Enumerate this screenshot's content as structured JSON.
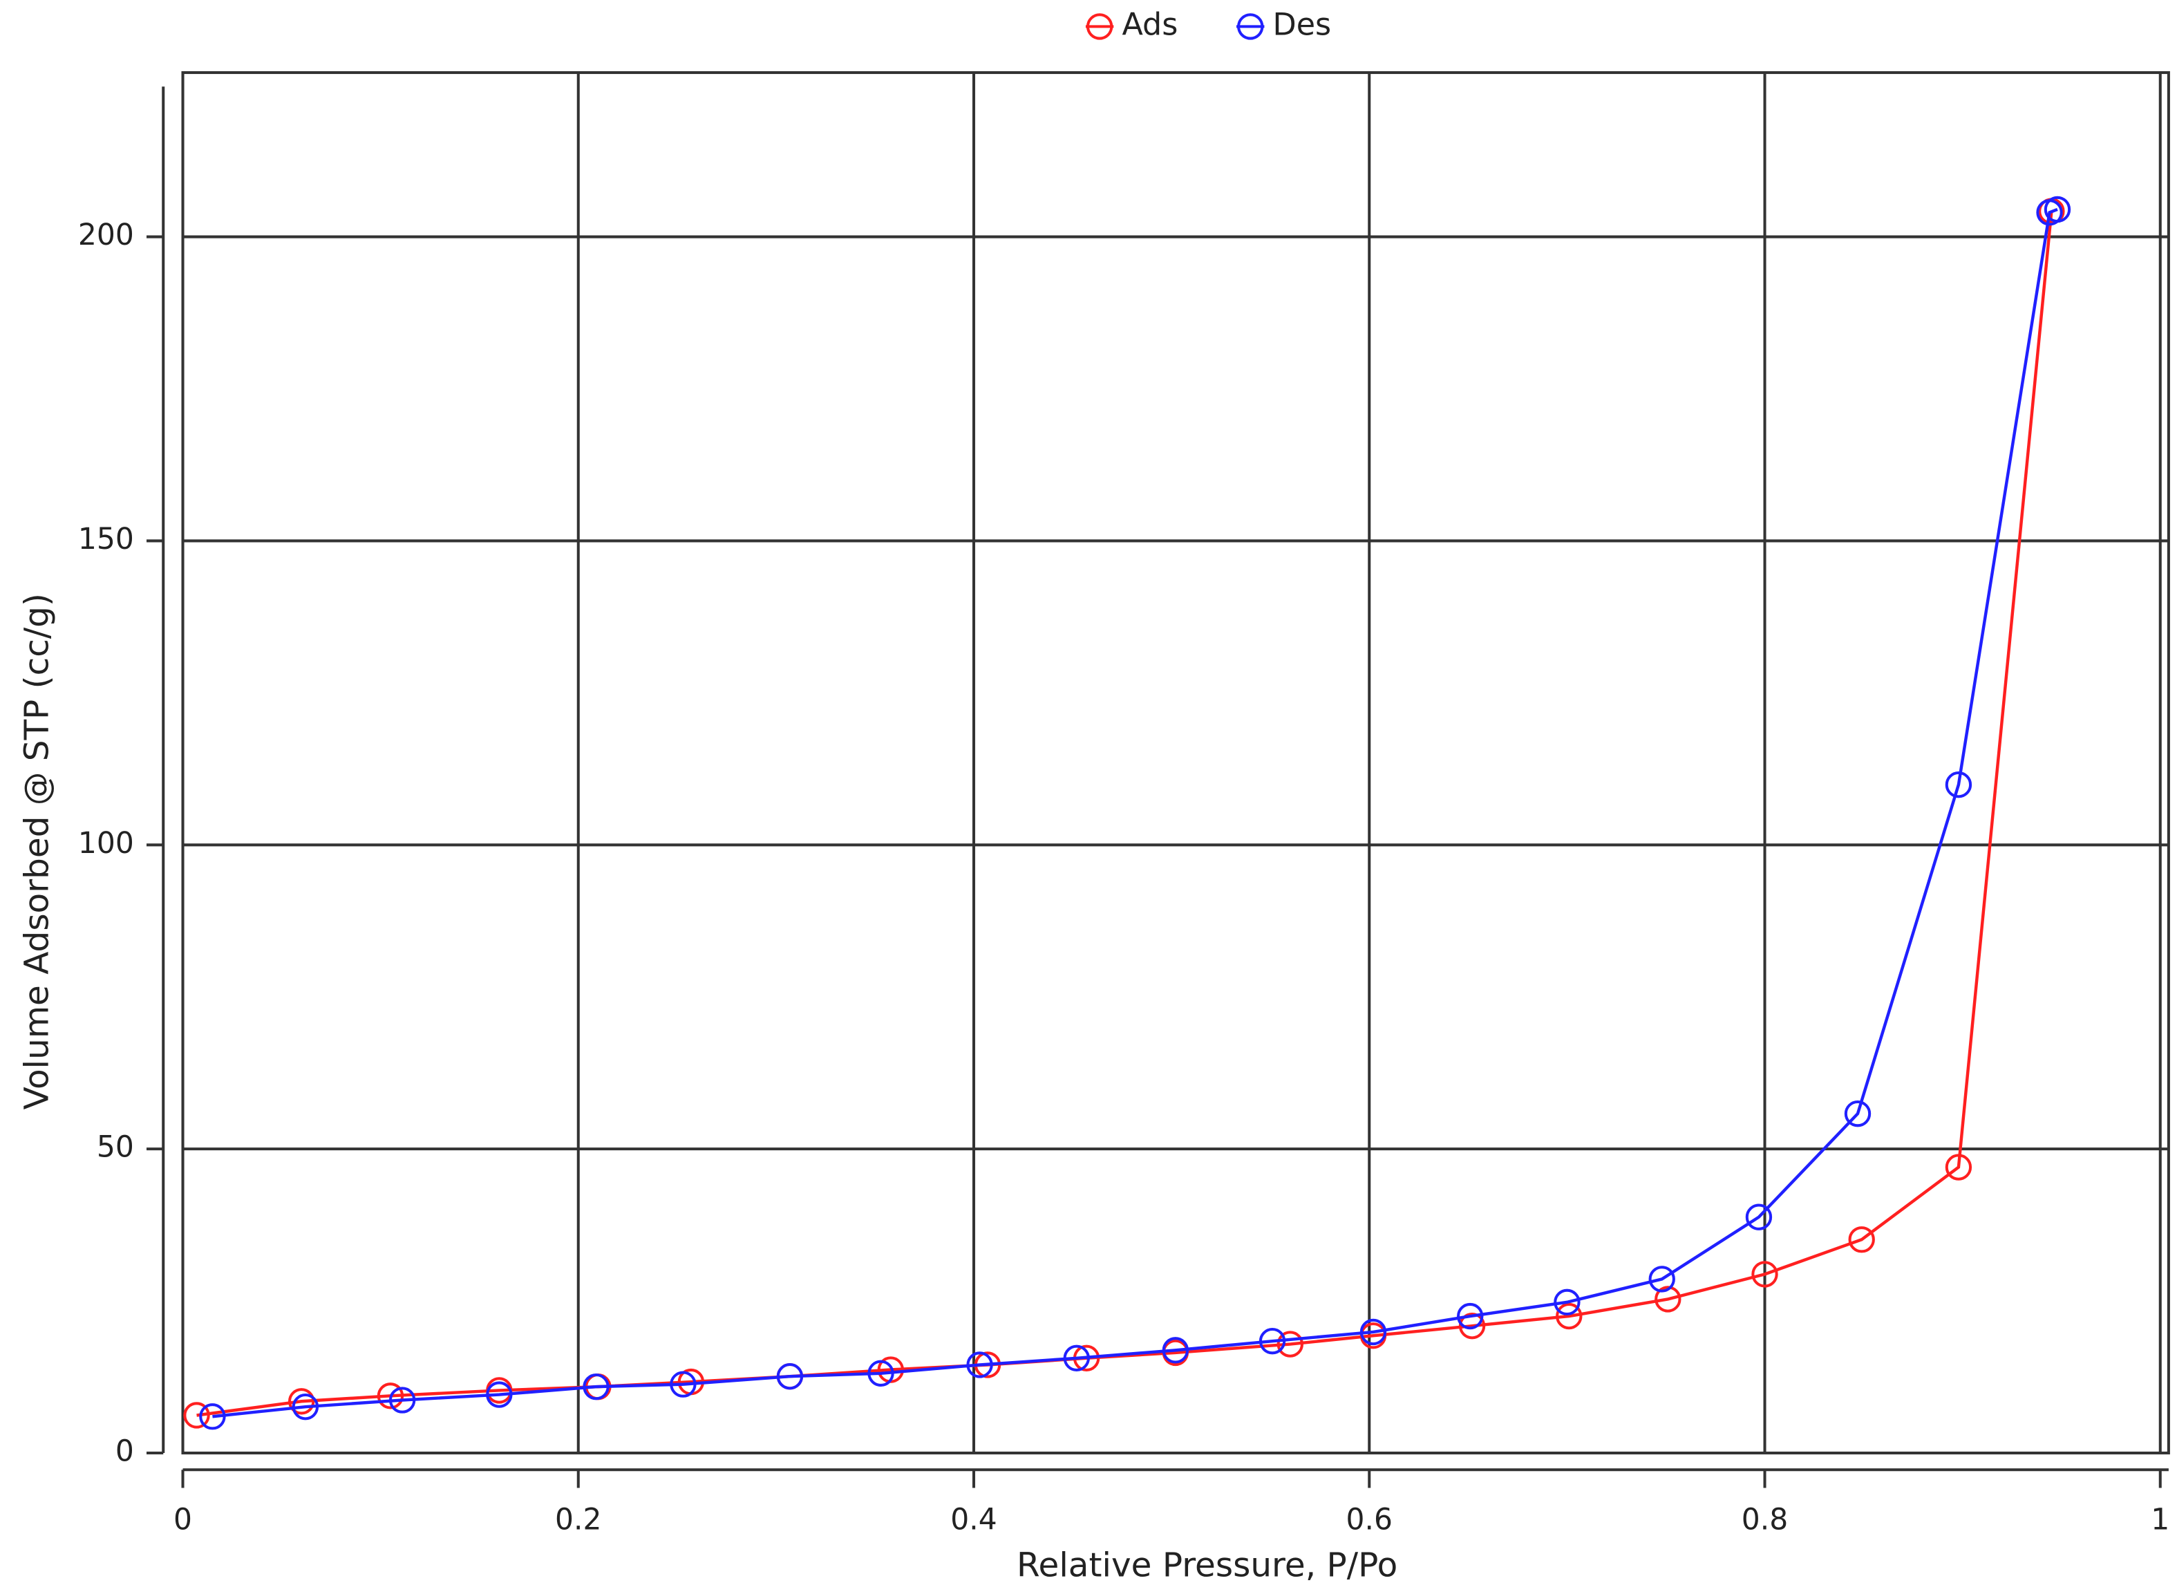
{
  "chart_data": {
    "type": "line",
    "x_label": "Relative Pressure, P/Po",
    "y_label": "Volume Adsorbed @ STP (cc/g)",
    "xlim": [
      0,
      1
    ],
    "ylim": [
      0,
      227
    ],
    "xticks": [
      0,
      0.2,
      0.4,
      0.6,
      0.8,
      1
    ],
    "yticks": [
      0,
      50,
      100,
      150,
      200
    ],
    "grid": true,
    "legend": "top",
    "series": [
      {
        "name": "Ads",
        "color": "#ff2020",
        "x": [
          0.007,
          0.06,
          0.105,
          0.16,
          0.21,
          0.257,
          0.307,
          0.358,
          0.407,
          0.457,
          0.502,
          0.56,
          0.602,
          0.652,
          0.701,
          0.751,
          0.8,
          0.849,
          0.898,
          0.945
        ],
        "values": [
          6.2,
          8.5,
          9.4,
          10.3,
          10.9,
          11.7,
          12.6,
          13.7,
          14.5,
          15.6,
          16.5,
          17.9,
          19.3,
          20.9,
          22.5,
          25.3,
          29.4,
          35.1,
          47.0,
          204.2
        ]
      },
      {
        "name": "Des",
        "color": "#2020ff",
        "x": [
          0.948,
          0.944,
          0.898,
          0.847,
          0.797,
          0.748,
          0.7,
          0.651,
          0.602,
          0.551,
          0.502,
          0.452,
          0.403,
          0.353,
          0.307,
          0.253,
          0.209,
          0.16,
          0.111,
          0.062,
          0.015
        ],
        "values": [
          204.5,
          204.0,
          109.9,
          55.8,
          38.8,
          28.6,
          24.8,
          22.5,
          19.9,
          18.4,
          16.9,
          15.6,
          14.5,
          13.1,
          12.6,
          11.3,
          10.9,
          9.6,
          8.7,
          7.6,
          6.0
        ]
      }
    ]
  }
}
